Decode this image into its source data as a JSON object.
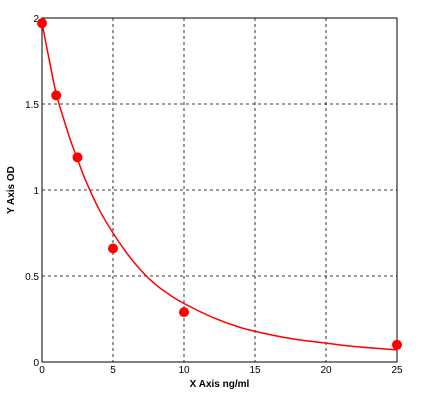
{
  "chart_data": {
    "type": "scatter",
    "title": "",
    "xlabel": "X Axis ng/ml",
    "ylabel": "Y Axis OD",
    "xlim": [
      0,
      25
    ],
    "ylim": [
      0,
      2
    ],
    "xticks": [
      "0",
      "5",
      "10",
      "15",
      "20",
      "25"
    ],
    "yticks": [
      "0",
      "0.5",
      "1",
      "1.5",
      "2"
    ],
    "grid": true,
    "grid_style": "dashed",
    "legend": "none",
    "series": [
      {
        "marker_color": "#ff0000",
        "points": [
          {
            "x": 0,
            "y": 1.97
          },
          {
            "x": 1,
            "y": 1.55
          },
          {
            "x": 2.5,
            "y": 1.19
          },
          {
            "x": 5,
            "y": 0.66
          },
          {
            "x": 10,
            "y": 0.29
          },
          {
            "x": 25,
            "y": 0.1
          }
        ]
      }
    ],
    "fit_curve": {
      "color": "#ff0000",
      "points": [
        {
          "x": 0,
          "y": 1.97
        },
        {
          "x": 0.5,
          "y": 1.76
        },
        {
          "x": 1,
          "y": 1.56
        },
        {
          "x": 1.5,
          "y": 1.42
        },
        {
          "x": 2,
          "y": 1.29
        },
        {
          "x": 2.5,
          "y": 1.18
        },
        {
          "x": 3,
          "y": 1.07
        },
        {
          "x": 4,
          "y": 0.89
        },
        {
          "x": 5,
          "y": 0.75
        },
        {
          "x": 6,
          "y": 0.63
        },
        {
          "x": 7,
          "y": 0.53
        },
        {
          "x": 8,
          "y": 0.45
        },
        {
          "x": 9,
          "y": 0.39
        },
        {
          "x": 10,
          "y": 0.34
        },
        {
          "x": 12,
          "y": 0.26
        },
        {
          "x": 14,
          "y": 0.2
        },
        {
          "x": 16,
          "y": 0.16
        },
        {
          "x": 18,
          "y": 0.13
        },
        {
          "x": 20,
          "y": 0.11
        },
        {
          "x": 22,
          "y": 0.09
        },
        {
          "x": 25,
          "y": 0.07
        }
      ]
    }
  }
}
